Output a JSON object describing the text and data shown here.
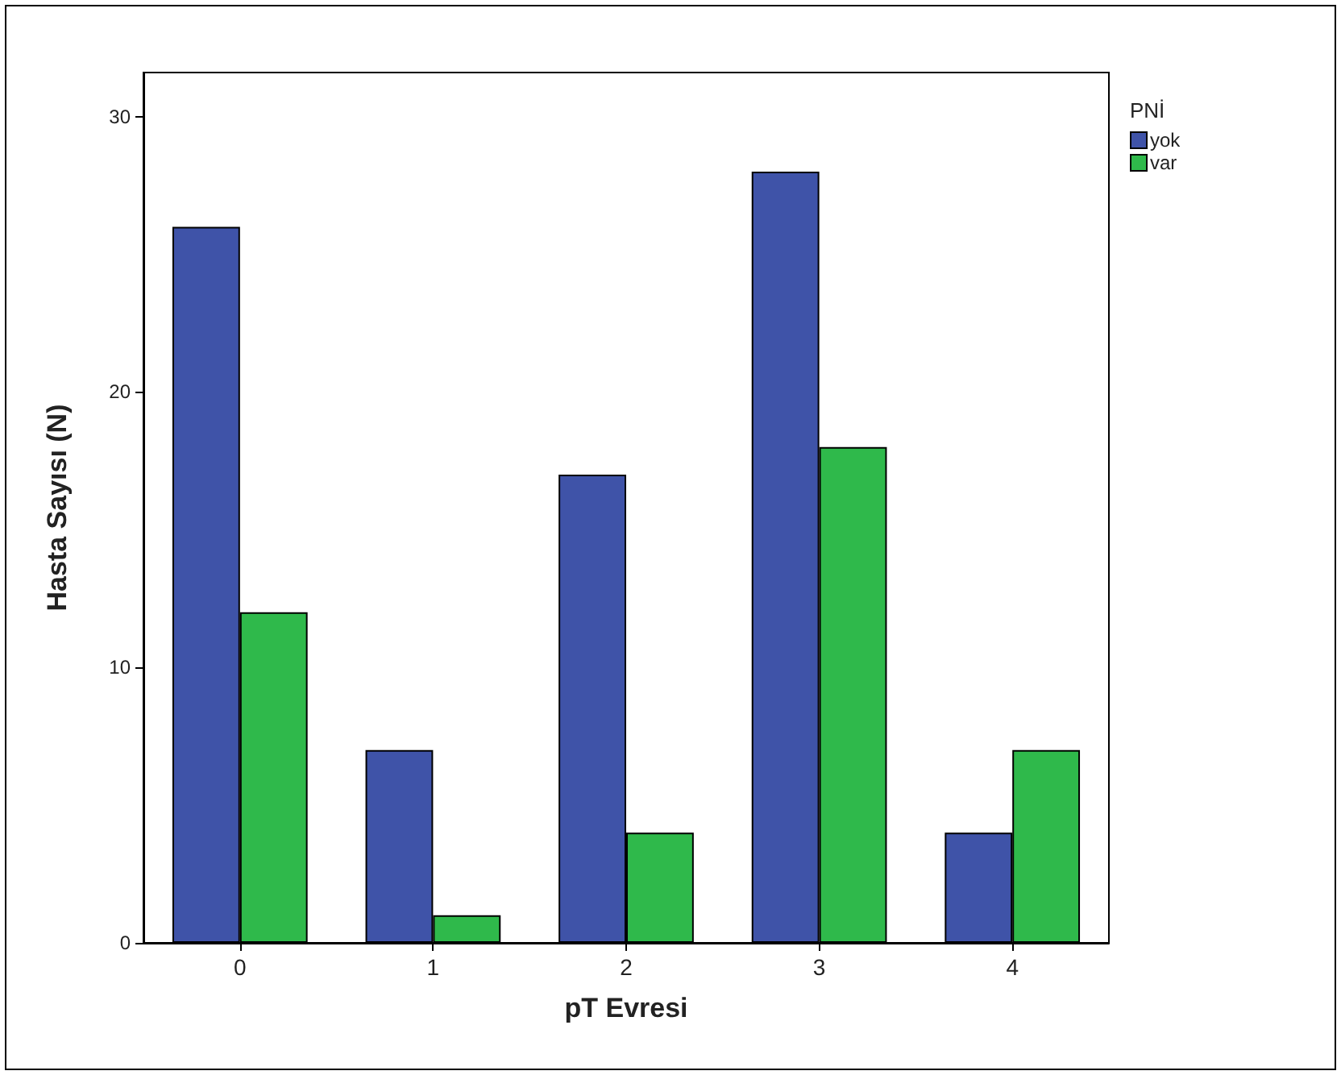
{
  "chart_data": {
    "type": "bar",
    "xlabel": "pT Evresi",
    "ylabel": "Hasta Sayısı (N)",
    "legend_title": "PNİ",
    "categories": [
      "0",
      "1",
      "2",
      "3",
      "4"
    ],
    "series": [
      {
        "name": "yok",
        "color": "#3f53a8",
        "values": [
          26,
          7,
          17,
          28,
          4
        ]
      },
      {
        "name": "var",
        "color": "#2fb94b",
        "values": [
          12,
          1,
          4,
          18,
          7
        ]
      }
    ],
    "ylim": [
      0,
      31.6
    ],
    "yticks": [
      0,
      10,
      20,
      30
    ],
    "grid": false,
    "legend": "top right"
  }
}
